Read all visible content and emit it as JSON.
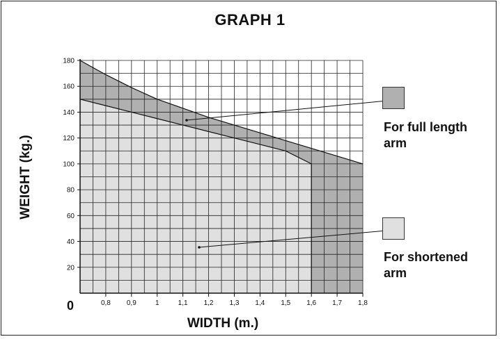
{
  "chart_data": {
    "type": "area",
    "title": "GRAPH 1",
    "xlabel": "WIDTH (m.)",
    "ylabel": "WEIGHT (kg.)",
    "origin_label": "0",
    "x_ticks": [
      "0,8",
      "0,9",
      "1",
      "1,1",
      "1,2",
      "1,3",
      "1,4",
      "1,5",
      "1,6",
      "1,7",
      "1,8"
    ],
    "y_ticks": [
      "20",
      "40",
      "60",
      "80",
      "100",
      "120",
      "140",
      "160",
      "180"
    ],
    "xlim": [
      0.7,
      1.8
    ],
    "ylim": [
      0,
      180
    ],
    "grid": true,
    "series": [
      {
        "name": "For full length arm",
        "color": "#b0b0b0",
        "x": [
          0.7,
          0.8,
          0.9,
          1.0,
          1.1,
          1.2,
          1.3,
          1.4,
          1.5,
          1.6,
          1.7,
          1.8
        ],
        "y": [
          180,
          169,
          159,
          150,
          143,
          136,
          130,
          124,
          118,
          112,
          106,
          100
        ]
      },
      {
        "name": "For shortened arm",
        "color": "#e0e0e0",
        "x": [
          0.7,
          0.8,
          0.9,
          1.0,
          1.1,
          1.2,
          1.3,
          1.4,
          1.5,
          1.6
        ],
        "y": [
          150,
          145,
          140,
          135,
          130,
          125,
          120,
          115,
          110,
          100
        ]
      }
    ],
    "legend": [
      {
        "label": "For full length arm",
        "color": "#b0b0b0"
      },
      {
        "label": "For shortened arm",
        "color": "#e0e0e0"
      }
    ],
    "legend_placement": "right"
  }
}
